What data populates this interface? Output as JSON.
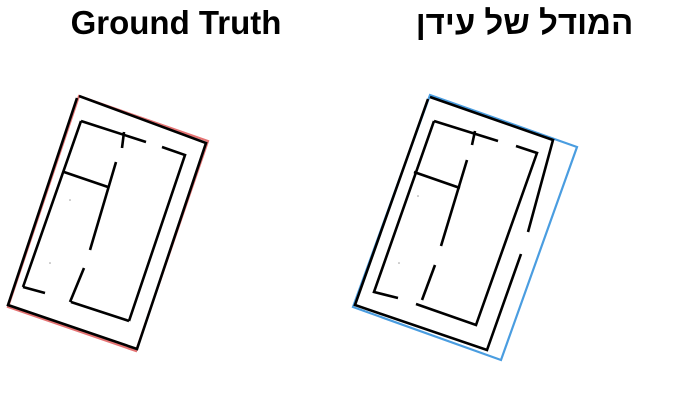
{
  "titles": {
    "ground_truth": "Ground Truth",
    "model": "המודל של עידן"
  },
  "colors": {
    "ground_truth_outline": "#e57373",
    "model_outline": "#4a9de0",
    "walls": "#000000"
  }
}
